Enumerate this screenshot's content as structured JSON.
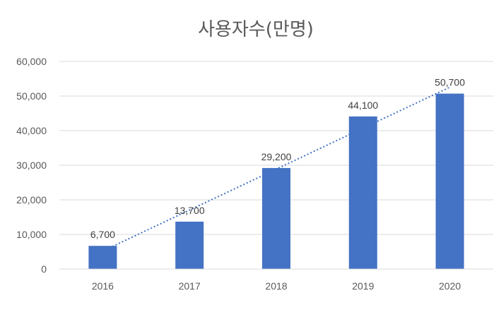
{
  "chart_data": {
    "type": "bar",
    "title": "사용자수(만명)",
    "categories": [
      "2016",
      "2017",
      "2018",
      "2019",
      "2020"
    ],
    "values": [
      6700,
      13700,
      29200,
      44100,
      50700
    ],
    "data_labels": [
      "6,700",
      "13,700",
      "29,200",
      "44,100",
      "50,700"
    ],
    "y_ticks": [
      "0",
      "10,000",
      "20,000",
      "30,000",
      "40,000",
      "50,000",
      "60,000"
    ],
    "ylim": [
      0,
      60000
    ],
    "grid": true,
    "trendline": {
      "type": "linear",
      "style": "dotted"
    },
    "colors": {
      "bar": "#4472C4",
      "trendline": "#4472C4",
      "grid": "#D9D9D9",
      "text": "#595959"
    }
  }
}
